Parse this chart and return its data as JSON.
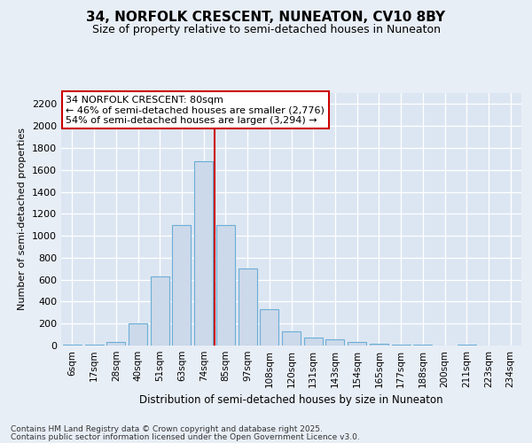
{
  "title1": "34, NORFOLK CRESCENT, NUNEATON, CV10 8BY",
  "title2": "Size of property relative to semi-detached houses in Nuneaton",
  "xlabel": "Distribution of semi-detached houses by size in Nuneaton",
  "ylabel": "Number of semi-detached properties",
  "categories": [
    "6sqm",
    "17sqm",
    "28sqm",
    "40sqm",
    "51sqm",
    "63sqm",
    "74sqm",
    "85sqm",
    "97sqm",
    "108sqm",
    "120sqm",
    "131sqm",
    "143sqm",
    "154sqm",
    "165sqm",
    "177sqm",
    "188sqm",
    "200sqm",
    "211sqm",
    "223sqm",
    "234sqm"
  ],
  "values": [
    10,
    10,
    30,
    200,
    630,
    1100,
    1680,
    1100,
    700,
    330,
    130,
    70,
    60,
    30,
    15,
    10,
    5,
    0,
    10,
    3,
    3
  ],
  "bar_color": "#ccd9ea",
  "bar_edge_color": "#6baed6",
  "vline_x": 6.5,
  "vline_color": "#cc0000",
  "annotation_line1": "34 NORFOLK CRESCENT: 80sqm",
  "annotation_line2": "← 46% of semi-detached houses are smaller (2,776)",
  "annotation_line3": "54% of semi-detached houses are larger (3,294) →",
  "annotation_box_facecolor": "#ffffff",
  "annotation_box_edgecolor": "#cc0000",
  "footer1": "Contains HM Land Registry data © Crown copyright and database right 2025.",
  "footer2": "Contains public sector information licensed under the Open Government Licence v3.0.",
  "bg_color": "#e8eef6",
  "plot_bg_color": "#dce6f2",
  "ylim_max": 2300,
  "yticks": [
    0,
    200,
    400,
    600,
    800,
    1000,
    1200,
    1400,
    1600,
    1800,
    2000,
    2200
  ],
  "title1_fontsize": 11,
  "title2_fontsize": 9,
  "ylabel_fontsize": 8,
  "xlabel_fontsize": 8.5,
  "tick_fontsize": 8,
  "xtick_fontsize": 7.5,
  "footer_fontsize": 6.5,
  "annot_fontsize": 8
}
